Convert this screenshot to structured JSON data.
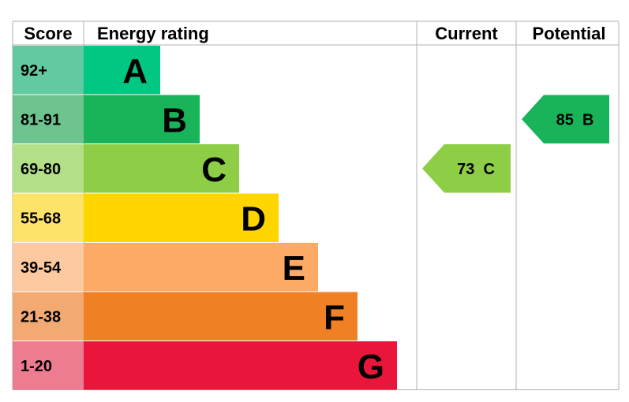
{
  "chart_data": {
    "type": "bar",
    "headers": {
      "score": "Score",
      "rating": "Energy rating",
      "current": "Current",
      "potential": "Potential"
    },
    "bands": [
      {
        "letter": "A",
        "range": "92+",
        "bar_color": "#00c781",
        "score_bg": "#63c9a0"
      },
      {
        "letter": "B",
        "range": "81-91",
        "bar_color": "#19b459",
        "score_bg": "#6dc48e"
      },
      {
        "letter": "C",
        "range": "69-80",
        "bar_color": "#8dce46",
        "score_bg": "#b3df88"
      },
      {
        "letter": "D",
        "range": "55-68",
        "bar_color": "#ffd500",
        "score_bg": "#fee36a"
      },
      {
        "letter": "E",
        "range": "39-54",
        "bar_color": "#fcaa65",
        "score_bg": "#fcc9a0"
      },
      {
        "letter": "F",
        "range": "21-38",
        "bar_color": "#ef8023",
        "score_bg": "#f2aa72"
      },
      {
        "letter": "G",
        "range": "1-20",
        "bar_color": "#e9153b",
        "score_bg": "#ee7c90"
      }
    ],
    "current": {
      "value": 73,
      "band": "C",
      "label": "73 C",
      "color": "#8dce46"
    },
    "potential": {
      "value": 85,
      "band": "B",
      "label": "85 B",
      "color": "#19b459"
    },
    "grid_color": "#b0b0b0"
  }
}
